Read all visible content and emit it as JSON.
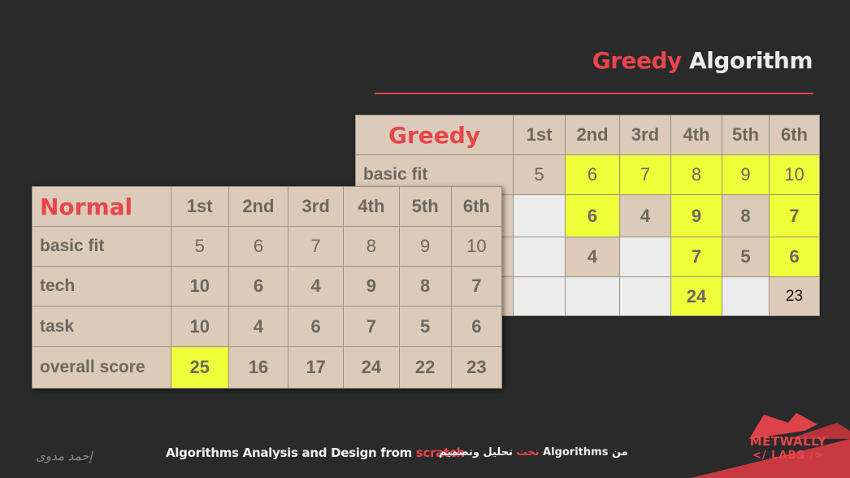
{
  "slide_title": {
    "part1": "Greedy",
    "part2": " Algorithm"
  },
  "greedy_table": {
    "header": "Greedy",
    "columns": [
      "1st",
      "2nd",
      "3rd",
      "4th",
      "5th",
      "6th"
    ],
    "row_label": "basic fit",
    "basic_fit": [
      "5",
      "6",
      "7",
      "8",
      "9",
      "10"
    ],
    "tech": [
      "",
      "6",
      "4",
      "9",
      "8",
      "7"
    ],
    "task": [
      "",
      "4",
      "",
      "7",
      "5",
      "6"
    ],
    "overall": [
      "",
      "",
      "",
      "24",
      "",
      "23"
    ]
  },
  "normal_table": {
    "header": "Normal",
    "columns": [
      "1st",
      "2nd",
      "3rd",
      "4th",
      "5th",
      "6th"
    ],
    "rows": [
      {
        "label": "basic fit",
        "values": [
          "5",
          "6",
          "7",
          "8",
          "9",
          "10"
        ]
      },
      {
        "label": "tech",
        "values": [
          "10",
          "6",
          "4",
          "9",
          "8",
          "7"
        ]
      },
      {
        "label": "task",
        "values": [
          "10",
          "4",
          "6",
          "7",
          "5",
          "6"
        ]
      },
      {
        "label": "overall score",
        "values": [
          "25",
          "16",
          "17",
          "24",
          "22",
          "23"
        ]
      }
    ]
  },
  "footer": {
    "course_prefix": "Algorithms Analysis and Design from ",
    "course_accent": "scratch",
    "arabic_main": "تحليل وتصميم Algorithms من ",
    "arabic_accent": "تحت",
    "signature": "إحمد مدوى"
  },
  "logo": {
    "line1": "METWALLY",
    "line2": "</ LABS />"
  },
  "colors": {
    "accent": "#e8454c",
    "background": "#2a2a2b",
    "cell_tan": "#dccbb8",
    "highlight": "#eeff3a",
    "cell_empty": "#ececec"
  }
}
